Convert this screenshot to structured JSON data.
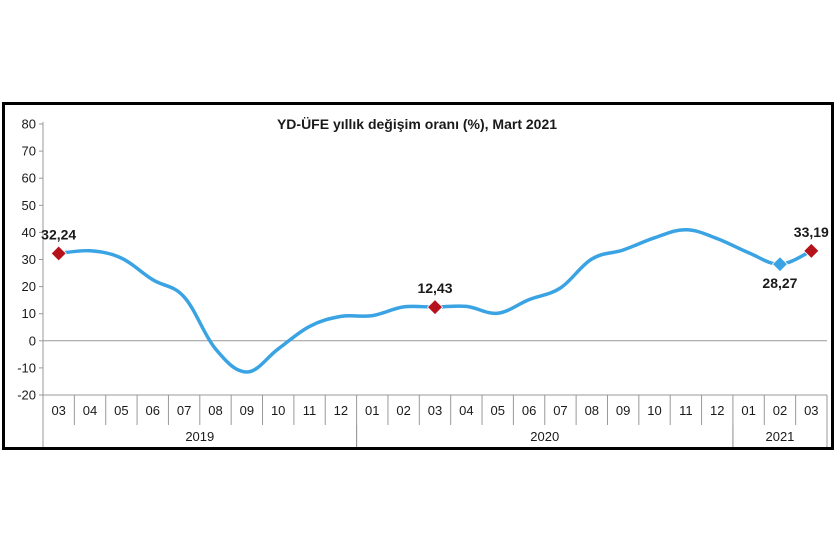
{
  "chart_data": {
    "type": "line",
    "title": "YD-ÜFE yıllık değişim oranı (%), Mart 2021",
    "xlabel": "",
    "ylabel": "",
    "ylim": [
      -20,
      80
    ],
    "yticks": [
      "-20",
      "-10",
      "0",
      "10",
      "20",
      "30",
      "40",
      "50",
      "60",
      "70",
      "80"
    ],
    "grid": false,
    "categories": [
      "03",
      "04",
      "05",
      "06",
      "07",
      "08",
      "09",
      "10",
      "11",
      "12",
      "01",
      "02",
      "03",
      "04",
      "05",
      "06",
      "07",
      "08",
      "09",
      "10",
      "11",
      "12",
      "01",
      "02",
      "03"
    ],
    "year_groups": [
      {
        "label": "2019",
        "start": 0,
        "end": 9
      },
      {
        "label": "2020",
        "start": 10,
        "end": 21
      },
      {
        "label": "2021",
        "start": 22,
        "end": 24
      }
    ],
    "series": [
      {
        "values": [
          32.24,
          33.2,
          30.5,
          22.5,
          16.2,
          -3.0,
          -11.5,
          -3.0,
          5.3,
          9.0,
          9.3,
          12.5,
          12.43,
          12.7,
          10.2,
          15.2,
          19.5,
          30.2,
          33.5,
          38.0,
          41.0,
          37.7,
          32.5,
          28.27,
          33.19
        ],
        "color": "#3aa3e3"
      }
    ],
    "highlight_color": "#b5121b",
    "highlight_alt_color": "#3aa3e3",
    "annotations": [
      {
        "index": 0,
        "text": "32,24",
        "style": "highlight",
        "position": "above"
      },
      {
        "index": 12,
        "text": "12,43",
        "style": "highlight",
        "position": "above"
      },
      {
        "index": 23,
        "text": "28,27",
        "style": "alt",
        "position": "below"
      },
      {
        "index": 24,
        "text": "33,19",
        "style": "highlight",
        "position": "above"
      }
    ]
  }
}
